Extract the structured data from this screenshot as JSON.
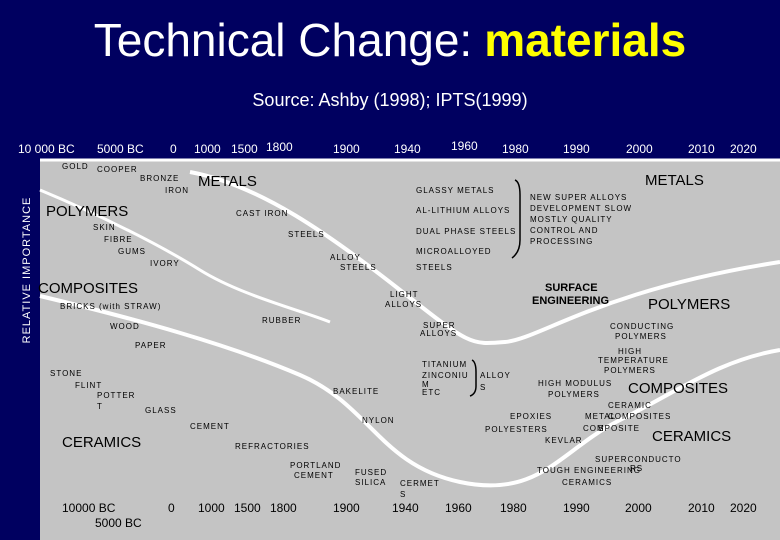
{
  "title": {
    "prefix": "Technical Change:",
    "highlight": "materials"
  },
  "subtitle": "Source: Ashby (1998); IPTS(1999)",
  "y_axis_label": "RELATIVE IMPORTANCE",
  "top_axis": [
    "10 000 BC",
    "5000 BC",
    "0",
    "1000",
    "1500",
    "1800",
    "1900",
    "1940",
    "1960",
    "1980",
    "1990",
    "2000",
    "2010",
    "2020"
  ],
  "bottom_axis": [
    "10000 BC",
    "5000 BC",
    "0",
    "1000",
    "1500",
    "1800",
    "1900",
    "1940",
    "1960",
    "1980",
    "1990",
    "2000",
    "2010",
    "2020"
  ],
  "big_labels": [
    "METALS",
    "POLYMERS",
    "COMPOSITES",
    "CERAMICS",
    "METALS",
    "POLYMERS",
    "COMPOSITES",
    "CERAMICS"
  ],
  "labels": [
    "GOLD",
    "COOPER",
    "BRONZE",
    "IRON",
    "SKIN",
    "FIBRE",
    "GUMS",
    "IVORY",
    "BRICKS (with STRAW)",
    "WOOD",
    "PAPER",
    "STONE",
    "FLINT",
    "POTTER",
    "T",
    "GLASS",
    "CEMENT",
    "REFRACTORIES",
    "PORTLAND",
    "CEMENT",
    "RUBBER",
    "BAKELITE",
    "NYLON",
    "FUSED",
    "SILICA",
    "CERMET",
    "S",
    "GLASSY METALS",
    "AL-LITHIUM ALLOYS",
    "CAST IRON",
    "STEELS",
    "DUAL PHASE STEELS",
    "ALLOY",
    "STEELS",
    "MICROALLOYED",
    "STEELS",
    "LIGHT",
    "ALLOYS",
    "SUPER",
    "ALLOYS",
    "TITANIUM",
    "ZINCONIU",
    "M",
    "ETC",
    "ALLOY",
    "S",
    "NEW SUPER ALLOYS",
    "DEVELOPMENT SLOW",
    "MOSTLY QUALITY",
    "CONTROL AND",
    "PROCESSING",
    "SURFACE",
    "ENGINEERING",
    "CONDUCTING",
    "POLYMERS",
    "HIGH",
    "TEMPERATURE",
    "POLYMERS",
    "HIGH MODULUS",
    "POLYMERS",
    "CERAMIC",
    "METAL",
    "COMPOSITES",
    "COMPOSITE",
    "S",
    "EPOXIES",
    "POLYESTERS",
    "KEVLAR",
    "SUPERCONDUCTO",
    "RS",
    "TOUGH ENGINEERING",
    "CERAMICS"
  ]
}
